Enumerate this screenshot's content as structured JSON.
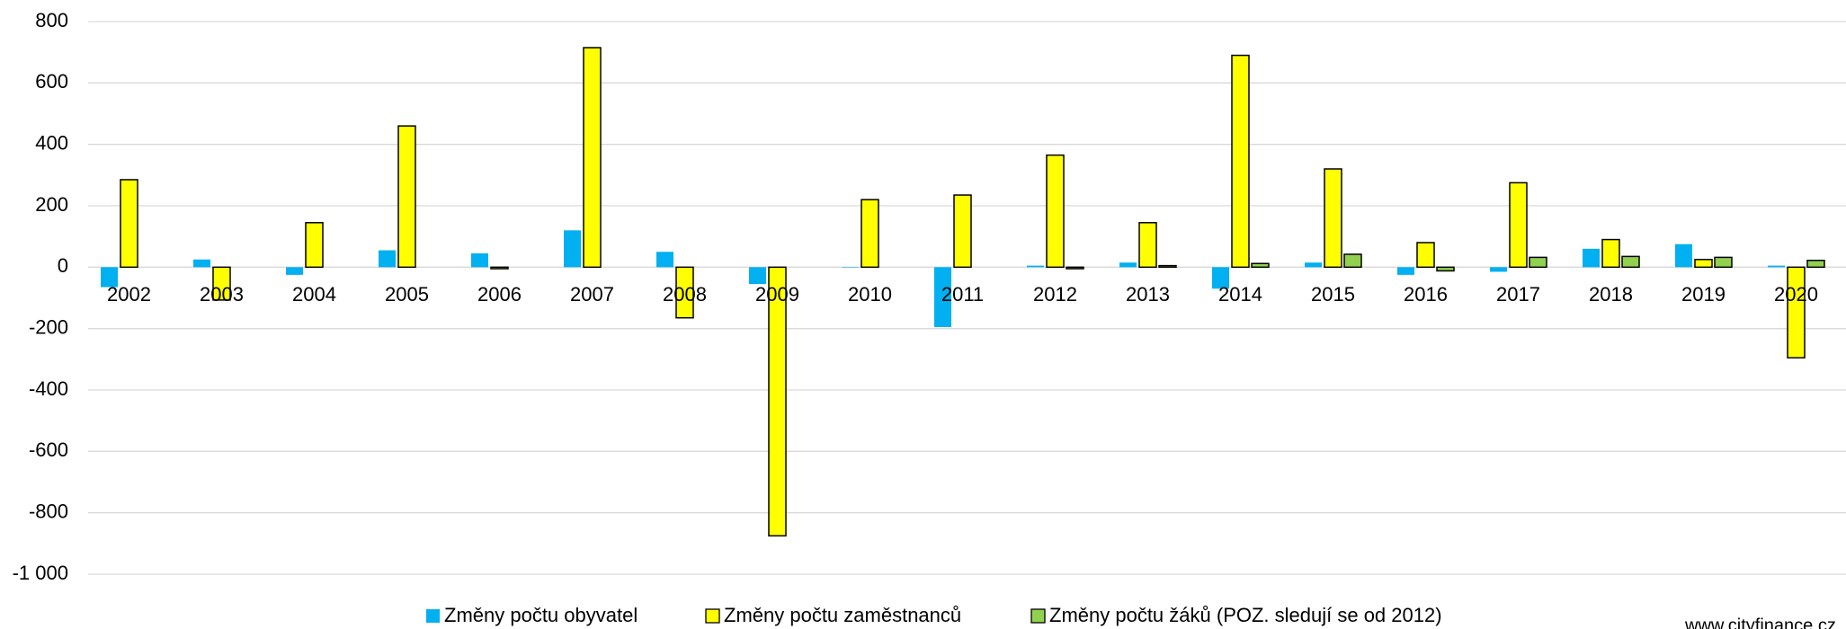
{
  "chart_data": {
    "type": "bar",
    "categories": [
      "2002",
      "2003",
      "2004",
      "2005",
      "2006",
      "2007",
      "2008",
      "2009",
      "2010",
      "2011",
      "2012",
      "2013",
      "2014",
      "2015",
      "2016",
      "2017",
      "2018",
      "2019",
      "2020"
    ],
    "series": [
      {
        "name": "Změny počtu obyvatel",
        "color": "#00b0f0",
        "outline": false,
        "values": [
          -65,
          25,
          -25,
          55,
          45,
          120,
          50,
          -55,
          0,
          -195,
          5,
          15,
          -70,
          15,
          -25,
          -15,
          60,
          75,
          5
        ]
      },
      {
        "name": "Změny počtu zaměstnanců",
        "color": "#ffff00",
        "outline": true,
        "values": [
          285,
          -107,
          145,
          460,
          -5,
          715,
          -165,
          -875,
          220,
          235,
          365,
          145,
          690,
          320,
          80,
          275,
          90,
          25,
          -295
        ]
      },
      {
        "name": "Změny počtu žáků (POZ. sledují se od 2012)",
        "color": "#92d050",
        "outline": true,
        "values": [
          null,
          null,
          null,
          null,
          null,
          null,
          null,
          null,
          null,
          null,
          -5,
          5,
          12,
          42,
          -12,
          32,
          35,
          32,
          22
        ]
      }
    ],
    "ylim": [
      -1000,
      800
    ],
    "yticks": [
      {
        "value": -1000,
        "label": "-1 000"
      },
      -800,
      -600,
      -400,
      -200,
      0,
      200,
      400,
      600,
      800
    ],
    "grid": true,
    "legend": "bottom",
    "source": "www.cityfinance.cz"
  }
}
